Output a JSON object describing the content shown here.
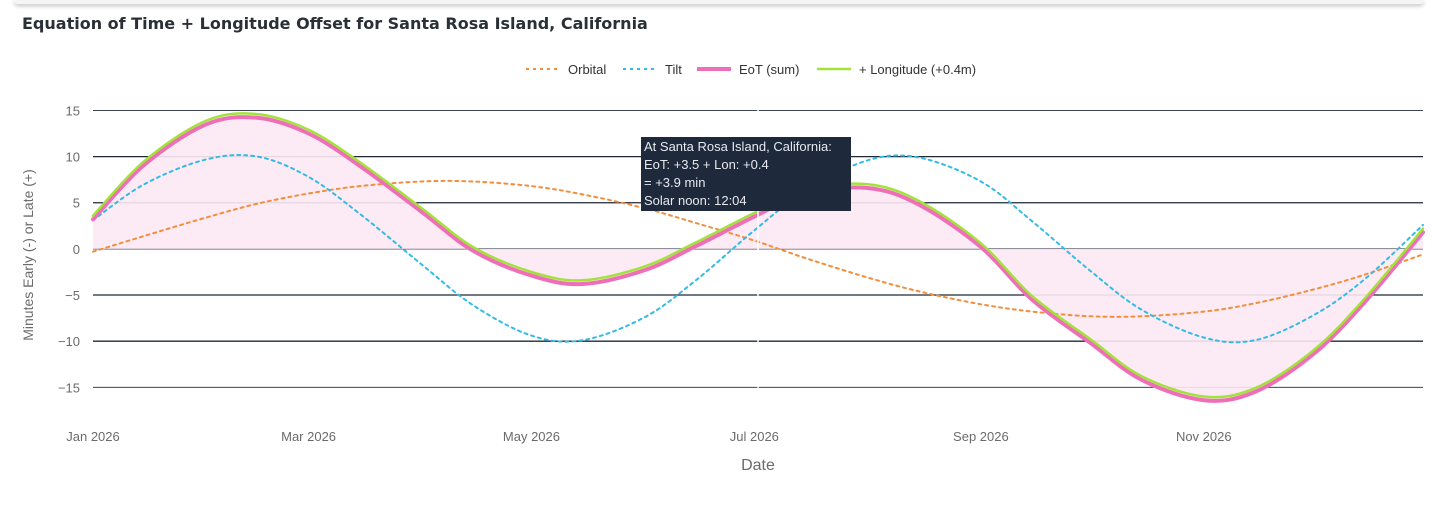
{
  "title": "Equation of Time + Longitude Offset for Santa Rosa Island, California",
  "tooltip": {
    "line1": "At Santa Rosa Island, California:",
    "line2": "EoT: +3.5 + Lon: +0.4",
    "line3": "= +3.9 min",
    "line4": "Solar noon: 12:04"
  },
  "colors": {
    "orbital": "#f28e3c",
    "tilt": "#33bbe6",
    "eot": "#ee6fb7",
    "longitude": "#a3e23a",
    "fill": "#fce9f3",
    "grid": "#1f2937"
  },
  "chart_data": {
    "type": "line",
    "title": "Equation of Time + Longitude Offset for Santa Rosa Island, California",
    "xlabel": "Date",
    "ylabel": "Minutes Early (-) or Late (+)",
    "xlim": [
      "2026-01-01",
      "2026-12-31"
    ],
    "ylim": [
      -18,
      17
    ],
    "x_ticks": [
      {
        "date": "2026-01-01",
        "label": "Jan 2026"
      },
      {
        "date": "2026-03-01",
        "label": "Mar 2026"
      },
      {
        "date": "2026-05-01",
        "label": "May 2026"
      },
      {
        "date": "2026-07-01",
        "label": "Jul 2026"
      },
      {
        "date": "2026-09-01",
        "label": "Sep 2026"
      },
      {
        "date": "2026-11-01",
        "label": "Nov 2026"
      }
    ],
    "y_ticks": [
      -15,
      -10,
      -5,
      0,
      5,
      10,
      15
    ],
    "y_tick_labels": [
      "−15",
      "−10",
      "−5",
      "0",
      "5",
      "10",
      "15"
    ],
    "legend_position": "top-center",
    "grid": true,
    "x": [
      "2026-01-01",
      "2026-01-15",
      "2026-02-01",
      "2026-02-15",
      "2026-03-01",
      "2026-03-15",
      "2026-04-01",
      "2026-04-15",
      "2026-05-01",
      "2026-05-15",
      "2026-06-01",
      "2026-06-15",
      "2026-07-01",
      "2026-07-15",
      "2026-08-01",
      "2026-08-15",
      "2026-09-01",
      "2026-09-15",
      "2026-10-01",
      "2026-10-15",
      "2026-11-01",
      "2026-11-15",
      "2026-12-01",
      "2026-12-15",
      "2026-12-31"
    ],
    "series": [
      {
        "name": "Orbital",
        "style": "dotted",
        "values": [
          -0.3,
          1.4,
          3.4,
          4.9,
          6.0,
          6.8,
          7.3,
          7.3,
          6.8,
          5.9,
          4.4,
          2.8,
          0.9,
          -1.0,
          -3.1,
          -4.6,
          -6.0,
          -6.8,
          -7.3,
          -7.3,
          -6.8,
          -5.9,
          -4.4,
          -2.8,
          -0.6
        ]
      },
      {
        "name": "Tilt",
        "style": "dotted",
        "values": [
          3.1,
          7.0,
          9.7,
          10.0,
          7.8,
          3.8,
          -1.7,
          -6.1,
          -9.4,
          -9.9,
          -7.4,
          -3.4,
          2.0,
          6.3,
          9.6,
          9.9,
          7.3,
          3.0,
          -2.4,
          -6.6,
          -9.6,
          -9.9,
          -7.2,
          -3.3,
          2.6
        ]
      },
      {
        "name": "EoT (sum)",
        "style": "solid",
        "values": [
          3.2,
          9.1,
          13.5,
          14.2,
          12.5,
          9.0,
          4.0,
          -0.2,
          -2.9,
          -3.8,
          -2.3,
          0.3,
          3.5,
          6.0,
          6.6,
          4.8,
          0.2,
          -5.5,
          -10.2,
          -14.2,
          -16.4,
          -15.5,
          -11.4,
          -5.8,
          1.8
        ]
      },
      {
        "name": "+ Longitude (+0.4m)",
        "style": "solid",
        "values": [
          3.6,
          9.5,
          13.9,
          14.6,
          12.9,
          9.4,
          4.4,
          0.2,
          -2.5,
          -3.4,
          -1.9,
          0.7,
          3.9,
          6.4,
          7.0,
          5.2,
          0.6,
          -5.1,
          -9.8,
          -13.8,
          -16.0,
          -15.1,
          -11.0,
          -5.4,
          2.2
        ]
      }
    ]
  }
}
